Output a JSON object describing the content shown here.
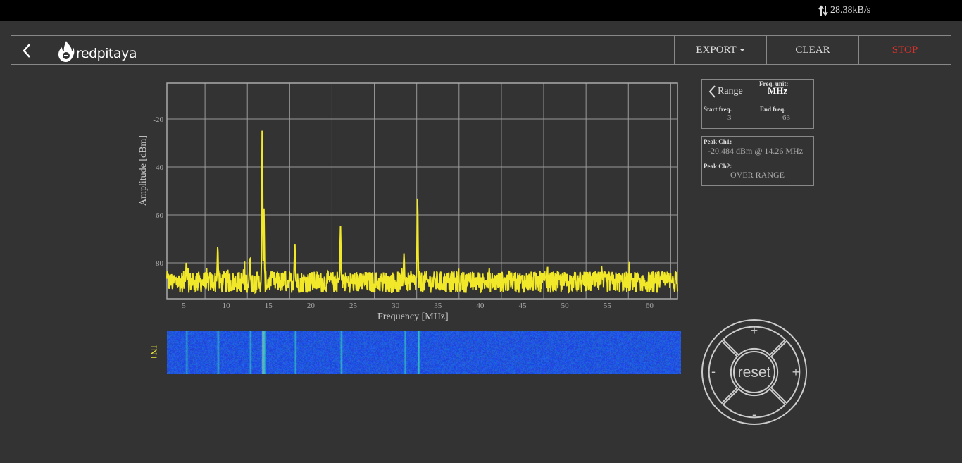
{
  "status": {
    "net_rate": "28.38kB/s"
  },
  "header": {
    "logo_text": "redpitaya",
    "export_label": "EXPORT",
    "clear_label": "CLEAR",
    "stop_label": "STOP"
  },
  "range": {
    "range_label": "Range",
    "freq_unit_label": "Freq. unit:",
    "freq_unit_value": "MHz",
    "start_freq_label": "Start freq.",
    "start_freq_value": "3",
    "end_freq_label": "End freq.",
    "end_freq_value": "63"
  },
  "peaks": {
    "ch1_label": "Peak Ch1:",
    "ch1_value": "-20.484 dBm @ 14.26 MHz",
    "ch2_label": "Peak Ch2:",
    "ch2_value": "OVER RANGE"
  },
  "waterfall": {
    "label": "IN1"
  },
  "dpad": {
    "center_label": "reset",
    "plus_label": "+",
    "minus_label": "-"
  },
  "colors": {
    "trace": "#f2e82a",
    "stop": "#e0302a",
    "waterfall_base": "#1a4fe0"
  },
  "chart_data": {
    "type": "line",
    "xlabel": "Frequency [MHz]",
    "ylabel": "Amplitude [dBm]",
    "xlim": [
      3,
      63.3
    ],
    "ylim": [
      -95,
      -5
    ],
    "xticks": [
      5,
      10,
      15,
      20,
      25,
      30,
      35,
      40,
      45,
      50,
      55,
      60
    ],
    "yticks": [
      -20,
      -40,
      -60,
      -80
    ],
    "grid": true,
    "noise_floor": -88,
    "series": [
      {
        "peaks": [
          {
            "x": 5.3,
            "y": -79.5
          },
          {
            "x": 9.0,
            "y": -73
          },
          {
            "x": 12.8,
            "y": -77.5
          },
          {
            "x": 14.26,
            "y": -20.484
          },
          {
            "x": 14.45,
            "y": -57
          },
          {
            "x": 18.1,
            "y": -71
          },
          {
            "x": 23.5,
            "y": -64.5
          },
          {
            "x": 31.0,
            "y": -76
          },
          {
            "x": 32.6,
            "y": -52.5
          }
        ]
      }
    ]
  }
}
